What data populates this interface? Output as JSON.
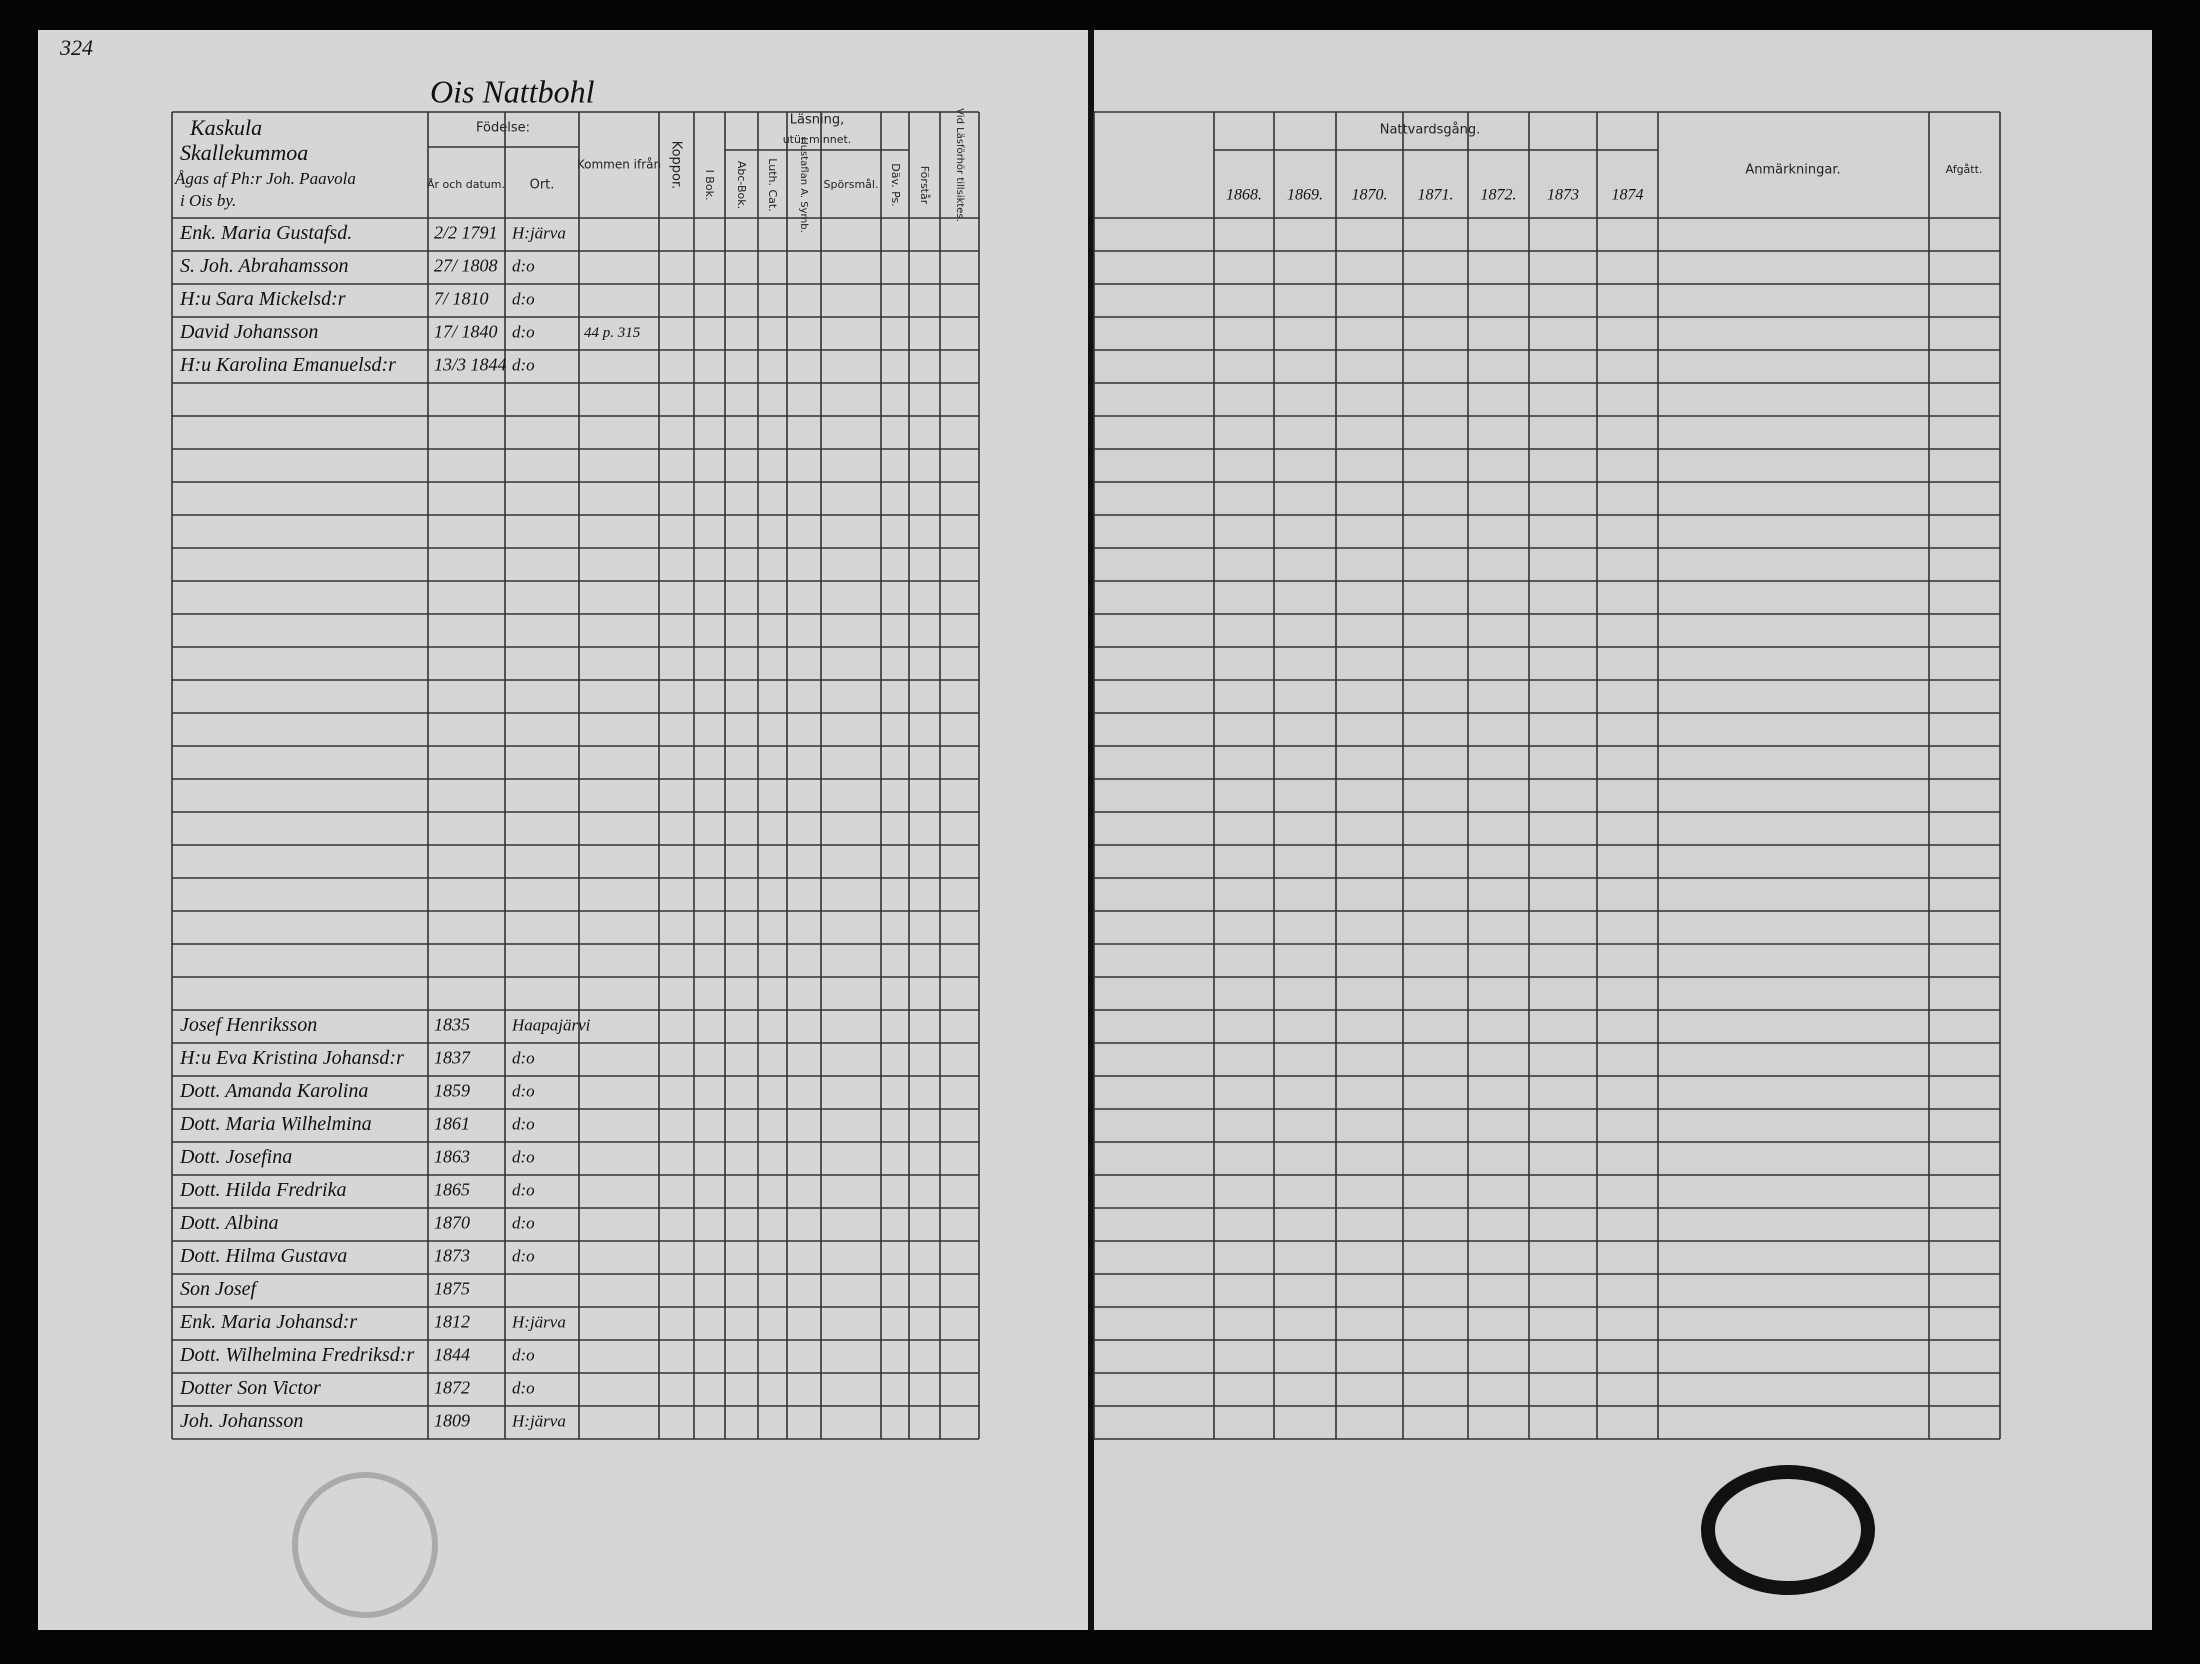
{
  "page_number": "324",
  "header": {
    "location": "Ois Nattbohl",
    "household": [
      "Kaskula",
      "Skallekummoa",
      "Ågas af Ph:r Joh. Paavola",
      "i Ois by."
    ]
  },
  "left_columns": {
    "birth": "Födelse:",
    "birth_date": "År och datum.",
    "birth_place": "Ort.",
    "came_from": "Kommen ifrån",
    "smallpox": "Koppor.",
    "reading": "Läsning,",
    "by_heart": "utür minnet.",
    "book": "I Bok.",
    "abc": "Abc-Bok.",
    "catechism": "Luth. Cat.",
    "table": "Hustaflan A. Symb.",
    "questions": "Spörsmål.",
    "dav": "Däv. Ps.",
    "understands": "Förstår",
    "examination": "Vid Läsförhör tillsiktes."
  },
  "right_columns": {
    "communion": "Nattvardsgång.",
    "years": [
      "1868.",
      "1869.",
      "1870.",
      "1871.",
      "1872.",
      "1873",
      "1874"
    ],
    "remarks": "Anmärkningar.",
    "departed": "Afgått."
  },
  "entries": [
    {
      "name": "Enk. Maria Gustafsd.",
      "born": "2/2 1791",
      "place": "H:järva"
    },
    {
      "name": "S. Joh. Abrahamsson",
      "born": "27/ 1808",
      "place": "d:o"
    },
    {
      "name": "H:u Sara Mickelsd:r",
      "born": "7/ 1810",
      "place": "d:o"
    },
    {
      "name": "David Johansson",
      "born": "17/ 1840",
      "place": "d:o",
      "from": "44 p. 315"
    },
    {
      "name": "H:u Karolina Emanuelsd:r",
      "born": "13/3 1844",
      "place": "d:o"
    }
  ],
  "entries_lower": [
    {
      "name": "Josef Henriksson",
      "born": "1835",
      "place": "Haapajärvi"
    },
    {
      "name": "H:u Eva Kristina Johansd:r",
      "born": "1837",
      "place": "d:o"
    },
    {
      "name": "Dott. Amanda Karolina",
      "born": "1859",
      "place": "d:o"
    },
    {
      "name": "Dott. Maria Wilhelmina",
      "born": "1861",
      "place": "d:o"
    },
    {
      "name": "Dott. Josefina",
      "born": "1863",
      "place": "d:o"
    },
    {
      "name": "Dott. Hilda Fredrika",
      "born": "1865",
      "place": "d:o"
    },
    {
      "name": "Dott. Albina",
      "born": "1870",
      "place": "d:o"
    },
    {
      "name": "Dott. Hilma Gustava",
      "born": "1873",
      "place": "d:o"
    },
    {
      "name": "Son Josef",
      "born": "1875"
    },
    {
      "name": "Enk. Maria Johansd:r",
      "born": "1812",
      "place": "H:järva"
    },
    {
      "name": "Dott. Wilhelmina Fredriksd:r",
      "born": "1844",
      "place": "d:o"
    },
    {
      "name": "Dotter Son Victor",
      "born": "1872",
      "place": "d:o"
    },
    {
      "name": "Joh. Johansson",
      "born": "1809",
      "place": "H:järva"
    }
  ]
}
